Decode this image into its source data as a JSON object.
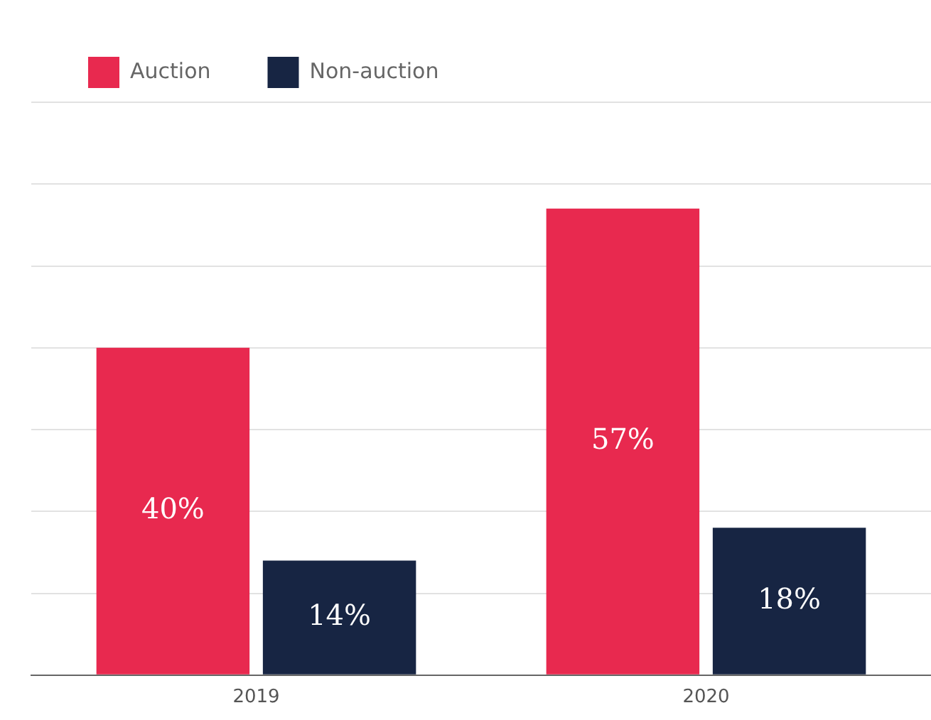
{
  "chart_data": {
    "type": "bar",
    "categories": [
      "2019",
      "2020"
    ],
    "series": [
      {
        "name": "Auction",
        "color": "#e8294f",
        "values": [
          40,
          57
        ],
        "value_labels": [
          "40%",
          "57%"
        ]
      },
      {
        "name": "Non-auction",
        "color": "#172543",
        "values": [
          14,
          18
        ],
        "value_labels": [
          "14%",
          "18%"
        ]
      }
    ],
    "ylim": [
      0,
      70
    ],
    "yticks": [
      {
        "value": 0,
        "label": null
      },
      {
        "value": 10,
        "label": null
      },
      {
        "value": 20,
        "label": null
      },
      {
        "value": 30,
        "label": null
      },
      {
        "value": 40,
        "label": null
      },
      {
        "value": 50,
        "label": null
      },
      {
        "value": 60,
        "label": null
      },
      {
        "value": 70,
        "label": null
      }
    ],
    "grid": "y",
    "legend": "top left",
    "tick_labels": "x"
  }
}
